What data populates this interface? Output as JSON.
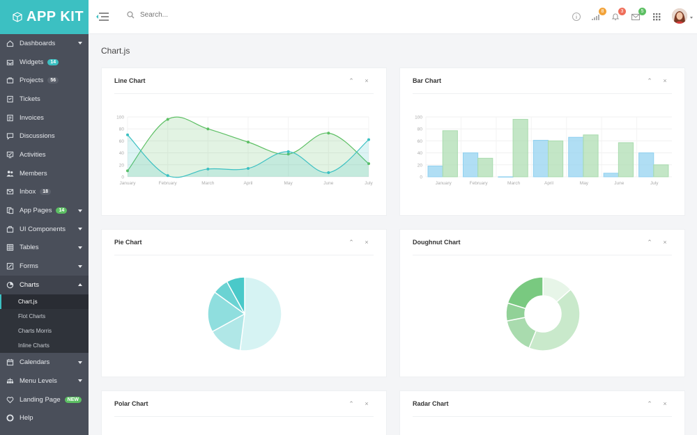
{
  "brand": {
    "name": "APP KIT"
  },
  "search": {
    "placeholder": "Search..."
  },
  "topbar": {
    "badges": {
      "analytics": "8",
      "notifications": "3",
      "mail": "5"
    },
    "colors": {
      "analytics": "#f2a33a",
      "notifications": "#ef6e5a",
      "mail": "#5cbf63"
    }
  },
  "sidebar": {
    "items": [
      {
        "label": "Dashboards",
        "icon": "home-icon",
        "caret": true
      },
      {
        "label": "Widgets",
        "icon": "inbox-tray-icon",
        "badge": "14",
        "badge_color": "#3cc0c2"
      },
      {
        "label": "Projects",
        "icon": "briefcase-icon",
        "badge": "56",
        "badge_color": "#5b606b"
      },
      {
        "label": "Tickets",
        "icon": "ticket-icon"
      },
      {
        "label": "Invoices",
        "icon": "invoice-icon"
      },
      {
        "label": "Discussions",
        "icon": "chat-icon"
      },
      {
        "label": "Activities",
        "icon": "checklist-icon"
      },
      {
        "label": "Members",
        "icon": "users-icon"
      },
      {
        "label": "Inbox",
        "icon": "mail-icon",
        "badge": "18",
        "badge_color": "#5b606b"
      },
      {
        "label": "App Pages",
        "icon": "pages-icon",
        "badge": "14",
        "badge_color": "#5cbf63",
        "caret": true
      },
      {
        "label": "UI Components",
        "icon": "components-icon",
        "caret": true
      },
      {
        "label": "Tables",
        "icon": "table-icon",
        "caret": true
      },
      {
        "label": "Forms",
        "icon": "form-icon",
        "caret": true
      },
      {
        "label": "Charts",
        "icon": "pie-chart-icon",
        "caret": true,
        "expanded": true
      }
    ],
    "subitems": [
      "Chart.js",
      "Flot Charts",
      "Charts Morris",
      "Inline Charts"
    ],
    "items_after": [
      {
        "label": "Calendars",
        "icon": "calendar-icon",
        "caret": true
      },
      {
        "label": "Menu Levels",
        "icon": "tree-icon",
        "caret": true
      },
      {
        "label": "Landing Page",
        "icon": "heart-icon",
        "badge": "NEW",
        "badge_color": "#5cbf63"
      },
      {
        "label": "Help",
        "icon": "lifebuoy-icon"
      }
    ]
  },
  "page": {
    "title": "Chart.js"
  },
  "cards": {
    "line": "Line Chart",
    "bar": "Bar Chart",
    "pie": "Pie Chart",
    "doughnut": "Doughnut Chart",
    "polar": "Polar Chart",
    "radar": "Radar Chart"
  },
  "chart_data": [
    {
      "type": "line",
      "categories": [
        "January",
        "February",
        "March",
        "April",
        "May",
        "June",
        "July"
      ],
      "ylim": [
        0,
        100
      ],
      "yticks": [
        0,
        20,
        40,
        60,
        80,
        100
      ],
      "series": [
        {
          "values": [
            10,
            96,
            80,
            58,
            38,
            73,
            22
          ],
          "color": "#5cbf63"
        },
        {
          "values": [
            70,
            2,
            13,
            14,
            42,
            7,
            62
          ],
          "color": "#3cc0c2"
        }
      ]
    },
    {
      "type": "bar",
      "categories": [
        "January",
        "February",
        "March",
        "April",
        "May",
        "June",
        "July"
      ],
      "ylim": [
        0,
        100
      ],
      "yticks": [
        0,
        20,
        40,
        60,
        80,
        100
      ],
      "series": [
        {
          "values": [
            18,
            40,
            0,
            61,
            66,
            6,
            40
          ],
          "color": "#8fd0f0"
        },
        {
          "values": [
            77,
            31,
            96,
            60,
            70,
            57,
            20
          ],
          "color": "#a9dbae"
        }
      ]
    },
    {
      "type": "pie",
      "values": [
        52,
        15,
        18,
        7,
        8
      ],
      "colors": [
        "#d6f3f3",
        "#b0e7e7",
        "#8fdede",
        "#6bd3d3",
        "#4ac9c9"
      ]
    },
    {
      "type": "doughnut",
      "values": [
        12,
        38,
        14,
        7,
        18
      ],
      "colors": [
        "#e7f5e8",
        "#c9e9cb",
        "#a9dbae",
        "#91d197",
        "#79c980"
      ]
    }
  ]
}
